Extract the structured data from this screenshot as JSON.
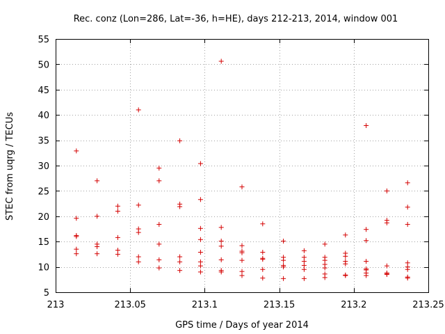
{
  "chart_data": {
    "type": "scatter",
    "title": "Rec. conz (Lon=286, Lat=-36, h=HE), days 212-213, 2014, window 001",
    "xlabel": "GPS time / Days of year 2014",
    "ylabel": "STEC from uqrg / TECUs",
    "xlim": [
      213,
      213.25
    ],
    "ylim": [
      5,
      55
    ],
    "grid": true,
    "marker": "+",
    "marker_color": "#d40000",
    "xticks": [
      213,
      213.05,
      213.1,
      213.15,
      213.2,
      213.25
    ],
    "xtick_labels": [
      "213",
      "213.05",
      "213.1",
      "213.15",
      "213.2",
      "213.25"
    ],
    "yticks": [
      5,
      10,
      15,
      20,
      25,
      30,
      35,
      40,
      45,
      50,
      55
    ],
    "ytick_labels": [
      "5",
      "10",
      "15",
      "20",
      "25",
      "30",
      "35",
      "40",
      "45",
      "50",
      "55"
    ],
    "series": [
      {
        "name": "STEC",
        "points": [
          [
            213.0139,
            32.9
          ],
          [
            213.0139,
            19.6
          ],
          [
            213.0139,
            16.2
          ],
          [
            213.0139,
            16.0
          ],
          [
            213.0139,
            13.5
          ],
          [
            213.0139,
            12.6
          ],
          [
            213.0278,
            27.0
          ],
          [
            213.0278,
            20.0
          ],
          [
            213.0278,
            14.5
          ],
          [
            213.0278,
            14.0
          ],
          [
            213.0278,
            12.6
          ],
          [
            213.0417,
            22.0
          ],
          [
            213.0417,
            21.0
          ],
          [
            213.0417,
            15.8
          ],
          [
            213.0417,
            13.3
          ],
          [
            213.0417,
            12.5
          ],
          [
            213.0556,
            41.0
          ],
          [
            213.0556,
            22.2
          ],
          [
            213.0556,
            17.5
          ],
          [
            213.0556,
            16.8
          ],
          [
            213.0556,
            12.0
          ],
          [
            213.0556,
            11.0
          ],
          [
            213.0694,
            29.5
          ],
          [
            213.0694,
            27.0
          ],
          [
            213.0694,
            18.4
          ],
          [
            213.0694,
            14.5
          ],
          [
            213.0694,
            11.4
          ],
          [
            213.0694,
            9.8
          ],
          [
            213.0833,
            34.9
          ],
          [
            213.0833,
            22.4
          ],
          [
            213.0833,
            21.9
          ],
          [
            213.0833,
            12.0
          ],
          [
            213.0833,
            11.0
          ],
          [
            213.0833,
            9.3
          ],
          [
            213.0972,
            30.4
          ],
          [
            213.0972,
            23.3
          ],
          [
            213.0972,
            17.6
          ],
          [
            213.0972,
            15.4
          ],
          [
            213.0972,
            12.9
          ],
          [
            213.0972,
            11.0
          ],
          [
            213.0972,
            10.2
          ],
          [
            213.0972,
            9.0
          ],
          [
            213.1111,
            50.6
          ],
          [
            213.1111,
            17.8
          ],
          [
            213.1111,
            15.1
          ],
          [
            213.1111,
            14.1
          ],
          [
            213.1111,
            11.4
          ],
          [
            213.1111,
            9.3
          ],
          [
            213.1111,
            9.0
          ],
          [
            213.125,
            25.8
          ],
          [
            213.125,
            14.2
          ],
          [
            213.125,
            13.1
          ],
          [
            213.125,
            12.8
          ],
          [
            213.125,
            11.3
          ],
          [
            213.125,
            9.1
          ],
          [
            213.125,
            8.3
          ],
          [
            213.1389,
            18.5
          ],
          [
            213.1389,
            12.9
          ],
          [
            213.1389,
            11.7
          ],
          [
            213.1389,
            11.5
          ],
          [
            213.1389,
            9.5
          ],
          [
            213.1389,
            7.8
          ],
          [
            213.1528,
            15.1
          ],
          [
            213.1528,
            11.9
          ],
          [
            213.1528,
            11.3
          ],
          [
            213.1528,
            10.3
          ],
          [
            213.1528,
            10.0
          ],
          [
            213.1528,
            7.7
          ],
          [
            213.1667,
            13.2
          ],
          [
            213.1667,
            11.9
          ],
          [
            213.1667,
            11.1
          ],
          [
            213.1667,
            10.3
          ],
          [
            213.1667,
            9.5
          ],
          [
            213.1667,
            7.7
          ],
          [
            213.1806,
            14.5
          ],
          [
            213.1806,
            11.9
          ],
          [
            213.1806,
            11.3
          ],
          [
            213.1806,
            10.5
          ],
          [
            213.1806,
            9.8
          ],
          [
            213.1806,
            8.6
          ],
          [
            213.1806,
            7.9
          ],
          [
            213.1944,
            16.3
          ],
          [
            213.1944,
            12.7
          ],
          [
            213.1944,
            12.1
          ],
          [
            213.1944,
            11.1
          ],
          [
            213.1944,
            10.6
          ],
          [
            213.1944,
            8.4
          ],
          [
            213.1944,
            8.3
          ],
          [
            213.2083,
            37.9
          ],
          [
            213.2083,
            17.4
          ],
          [
            213.2083,
            15.2
          ],
          [
            213.2083,
            11.1
          ],
          [
            213.2083,
            9.6
          ],
          [
            213.2083,
            9.4
          ],
          [
            213.2083,
            8.8
          ],
          [
            213.2083,
            8.3
          ],
          [
            213.2222,
            25.0
          ],
          [
            213.2222,
            19.2
          ],
          [
            213.2222,
            18.7
          ],
          [
            213.2222,
            10.2
          ],
          [
            213.2222,
            8.8
          ],
          [
            213.2222,
            8.7
          ],
          [
            213.2222,
            8.5
          ],
          [
            213.2361,
            26.6
          ],
          [
            213.2361,
            21.8
          ],
          [
            213.2361,
            18.4
          ],
          [
            213.2361,
            10.8
          ],
          [
            213.2361,
            10.0
          ],
          [
            213.2361,
            9.5
          ],
          [
            213.2361,
            8.0
          ],
          [
            213.2361,
            7.8
          ]
        ]
      }
    ]
  }
}
